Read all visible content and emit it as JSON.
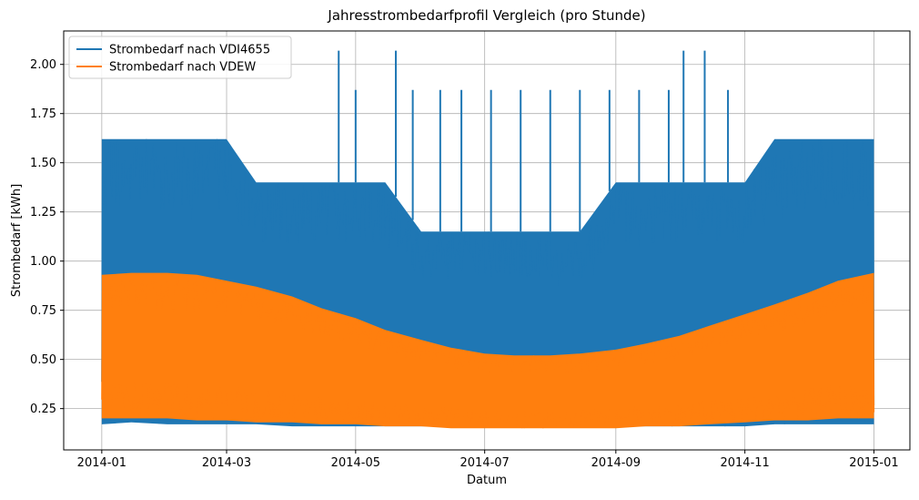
{
  "chart_data": {
    "type": "line",
    "title": "Jahresstrombedarfprofil Vergleich (pro Stunde)",
    "xlabel": "Datum",
    "ylabel": "Strombedarf [kWh]",
    "x_ticks": [
      "2014-01",
      "2014-03",
      "2014-05",
      "2014-07",
      "2014-09",
      "2014-11",
      "2015-01"
    ],
    "x_tick_dates": [
      "2014-01-01",
      "2014-03-01",
      "2014-05-01",
      "2014-07-01",
      "2014-09-01",
      "2014-11-01",
      "2015-01-01"
    ],
    "y_ticks": [
      "0.25",
      "0.50",
      "0.75",
      "1.00",
      "1.25",
      "1.50",
      "1.75",
      "2.00"
    ],
    "y_tick_values": [
      0.25,
      0.5,
      0.75,
      1.0,
      1.25,
      1.5,
      1.75,
      2.0
    ],
    "xlim": [
      "2013-12-14",
      "2015-01-18"
    ],
    "ylim": [
      0.04,
      2.17
    ],
    "grid": true,
    "legend_position": "top-left",
    "series": [
      {
        "name": "Strombedarf nach VDI4655",
        "color": "#1f77b4",
        "envelope": {
          "x": [
            "2014-01-01",
            "2014-01-15",
            "2014-02-01",
            "2014-02-15",
            "2014-03-01",
            "2014-03-15",
            "2014-04-01",
            "2014-04-15",
            "2014-05-01",
            "2014-05-15",
            "2014-06-01",
            "2014-06-15",
            "2014-07-01",
            "2014-07-15",
            "2014-08-01",
            "2014-08-15",
            "2014-09-01",
            "2014-09-15",
            "2014-10-01",
            "2014-10-15",
            "2014-11-01",
            "2014-11-15",
            "2014-12-01",
            "2014-12-15",
            "2015-01-01"
          ],
          "min": [
            0.17,
            0.18,
            0.17,
            0.17,
            0.17,
            0.17,
            0.16,
            0.16,
            0.16,
            0.16,
            0.16,
            0.16,
            0.16,
            0.16,
            0.16,
            0.16,
            0.16,
            0.16,
            0.16,
            0.16,
            0.16,
            0.17,
            0.17,
            0.17,
            0.17
          ],
          "max": [
            1.62,
            1.62,
            1.62,
            1.62,
            1.62,
            1.4,
            1.4,
            1.4,
            1.4,
            1.4,
            1.15,
            1.15,
            1.15,
            1.15,
            1.15,
            1.15,
            1.4,
            1.4,
            1.4,
            1.4,
            1.4,
            1.62,
            1.62,
            1.62,
            1.62
          ]
        },
        "peaks": [
          {
            "x": "2014-04-23",
            "y": 2.07
          },
          {
            "x": "2014-05-01",
            "y": 1.87
          },
          {
            "x": "2014-05-20",
            "y": 2.07
          },
          {
            "x": "2014-05-28",
            "y": 1.87
          },
          {
            "x": "2014-06-10",
            "y": 1.87
          },
          {
            "x": "2014-06-20",
            "y": 1.87
          },
          {
            "x": "2014-07-04",
            "y": 1.87
          },
          {
            "x": "2014-07-18",
            "y": 1.87
          },
          {
            "x": "2014-08-01",
            "y": 1.87
          },
          {
            "x": "2014-08-15",
            "y": 1.87
          },
          {
            "x": "2014-08-29",
            "y": 1.87
          },
          {
            "x": "2014-09-12",
            "y": 1.87
          },
          {
            "x": "2014-09-26",
            "y": 1.87
          },
          {
            "x": "2014-10-03",
            "y": 2.07
          },
          {
            "x": "2014-10-13",
            "y": 2.07
          },
          {
            "x": "2014-10-24",
            "y": 1.87
          }
        ]
      },
      {
        "name": "Strombedarf nach VDEW",
        "color": "#ff7f0e",
        "envelope": {
          "x": [
            "2014-01-01",
            "2014-01-15",
            "2014-02-01",
            "2014-02-15",
            "2014-03-01",
            "2014-03-15",
            "2014-04-01",
            "2014-04-15",
            "2014-05-01",
            "2014-05-15",
            "2014-06-01",
            "2014-06-15",
            "2014-07-01",
            "2014-07-15",
            "2014-08-01",
            "2014-08-15",
            "2014-09-01",
            "2014-09-15",
            "2014-10-01",
            "2014-10-15",
            "2014-11-01",
            "2014-11-15",
            "2014-12-01",
            "2014-12-15",
            "2015-01-01"
          ],
          "min": [
            0.2,
            0.2,
            0.2,
            0.19,
            0.19,
            0.18,
            0.18,
            0.17,
            0.17,
            0.16,
            0.16,
            0.15,
            0.15,
            0.15,
            0.15,
            0.15,
            0.15,
            0.16,
            0.16,
            0.17,
            0.18,
            0.19,
            0.19,
            0.2,
            0.2
          ],
          "max": [
            0.93,
            0.94,
            0.94,
            0.93,
            0.9,
            0.87,
            0.82,
            0.76,
            0.71,
            0.65,
            0.6,
            0.56,
            0.53,
            0.52,
            0.52,
            0.53,
            0.55,
            0.58,
            0.62,
            0.67,
            0.73,
            0.78,
            0.84,
            0.9,
            0.94
          ]
        }
      }
    ]
  }
}
